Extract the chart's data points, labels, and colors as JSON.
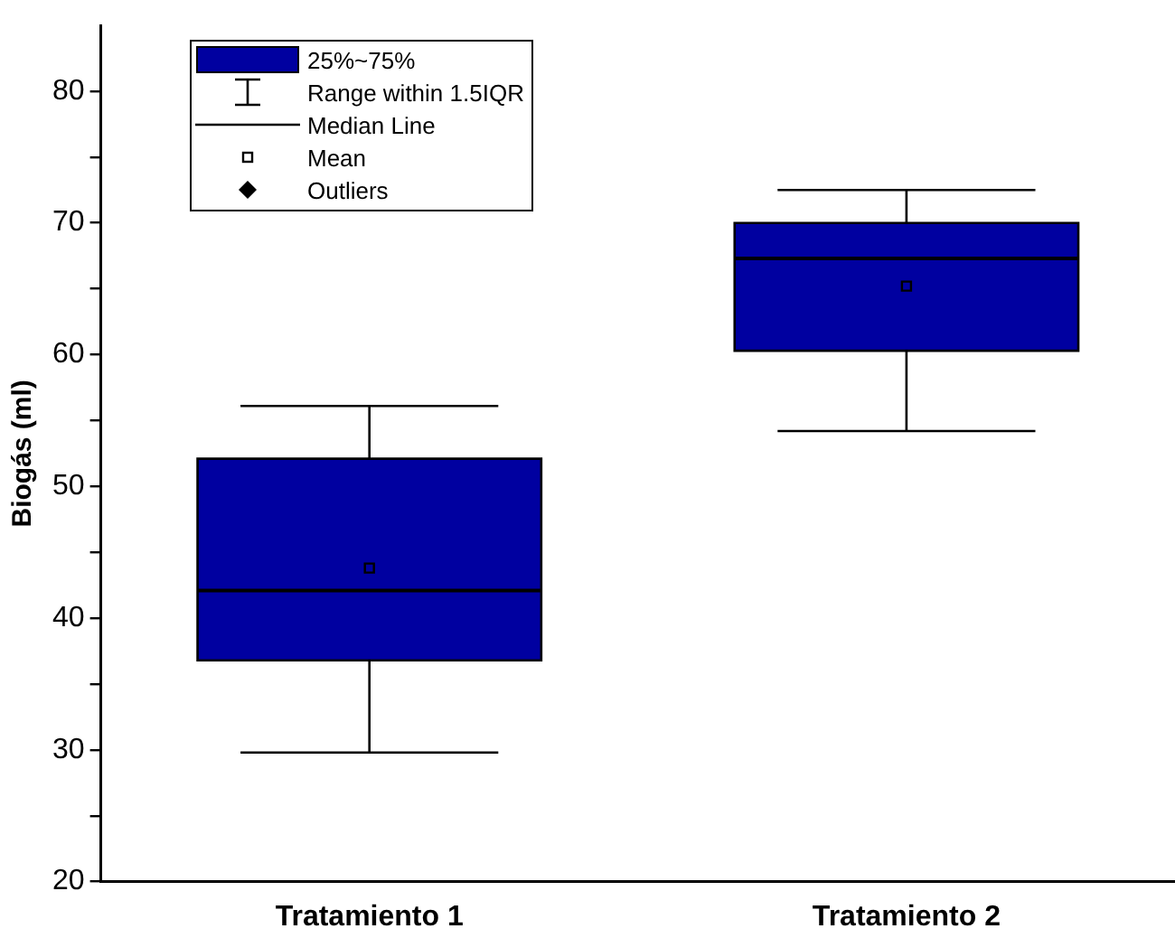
{
  "chart_data": {
    "type": "box",
    "ylabel": "Biogás (ml)",
    "categories": [
      "Tratamiento 1",
      "Tratamiento 2"
    ],
    "boxes": [
      {
        "low": 29.8,
        "q1": 36.8,
        "median": 42.1,
        "q3": 52.1,
        "high": 56.1,
        "mean": 43.8
      },
      {
        "low": 54.2,
        "q1": 60.3,
        "median": 67.3,
        "q3": 70.0,
        "high": 72.5,
        "mean": 65.2
      }
    ],
    "color": "#0000a0",
    "ylim": [
      20,
      85
    ],
    "yticks": [
      20,
      {
        "value": 25,
        "label": null
      },
      30,
      {
        "value": 35,
        "label": null
      },
      40,
      {
        "value": 45,
        "label": null
      },
      50,
      {
        "value": 55,
        "label": null
      },
      60,
      {
        "value": 65,
        "label": null
      },
      70,
      {
        "value": 75,
        "label": null
      },
      80
    ],
    "grid": false,
    "annotations": [
      "25%~75%",
      "Range within 1.5IQR",
      "Median Line",
      "Mean",
      "Outliers"
    ]
  }
}
